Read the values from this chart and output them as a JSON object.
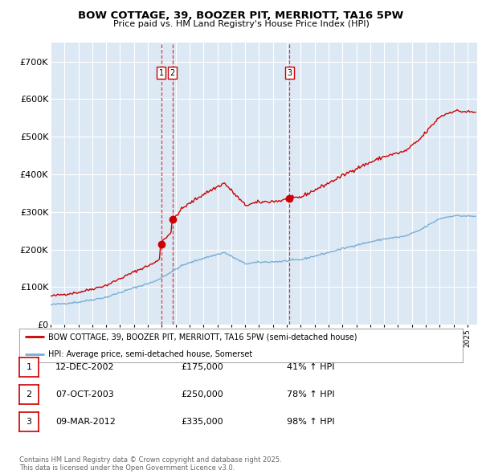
{
  "title": "BOW COTTAGE, 39, BOOZER PIT, MERRIOTT, TA16 5PW",
  "subtitle": "Price paid vs. HM Land Registry's House Price Index (HPI)",
  "background_color": "#ffffff",
  "plot_bg_color": "#dce9f5",
  "hpi_color": "#7aadd4",
  "price_color": "#cc0000",
  "ylim": [
    0,
    750000
  ],
  "yticks": [
    0,
    100000,
    200000,
    300000,
    400000,
    500000,
    600000,
    700000
  ],
  "ytick_labels": [
    "£0",
    "£100K",
    "£200K",
    "£300K",
    "£400K",
    "£500K",
    "£600K",
    "£700K"
  ],
  "xlim_start": 1995.0,
  "xlim_end": 2025.7,
  "transactions": [
    {
      "label": "1",
      "date": 2002.958,
      "price": 175000,
      "pct": "41%",
      "date_str": "12-DEC-2002"
    },
    {
      "label": "2",
      "date": 2003.77,
      "price": 250000,
      "pct": "78%",
      "date_str": "07-OCT-2003"
    },
    {
      "label": "3",
      "date": 2012.19,
      "price": 335000,
      "pct": "98%",
      "date_str": "09-MAR-2012"
    }
  ],
  "legend_entries": [
    "BOW COTTAGE, 39, BOOZER PIT, MERRIOTT, TA16 5PW (semi-detached house)",
    "HPI: Average price, semi-detached house, Somerset"
  ],
  "footer": "Contains HM Land Registry data © Crown copyright and database right 2025.\nThis data is licensed under the Open Government Licence v3.0.",
  "table_rows": [
    {
      "num": "1",
      "date": "12-DEC-2002",
      "price": "£175,000",
      "pct": "41% ↑ HPI"
    },
    {
      "num": "2",
      "date": "07-OCT-2003",
      "price": "£250,000",
      "pct": "78% ↑ HPI"
    },
    {
      "num": "3",
      "date": "09-MAR-2012",
      "price": "£335,000",
      "pct": "98% ↑ HPI"
    }
  ]
}
